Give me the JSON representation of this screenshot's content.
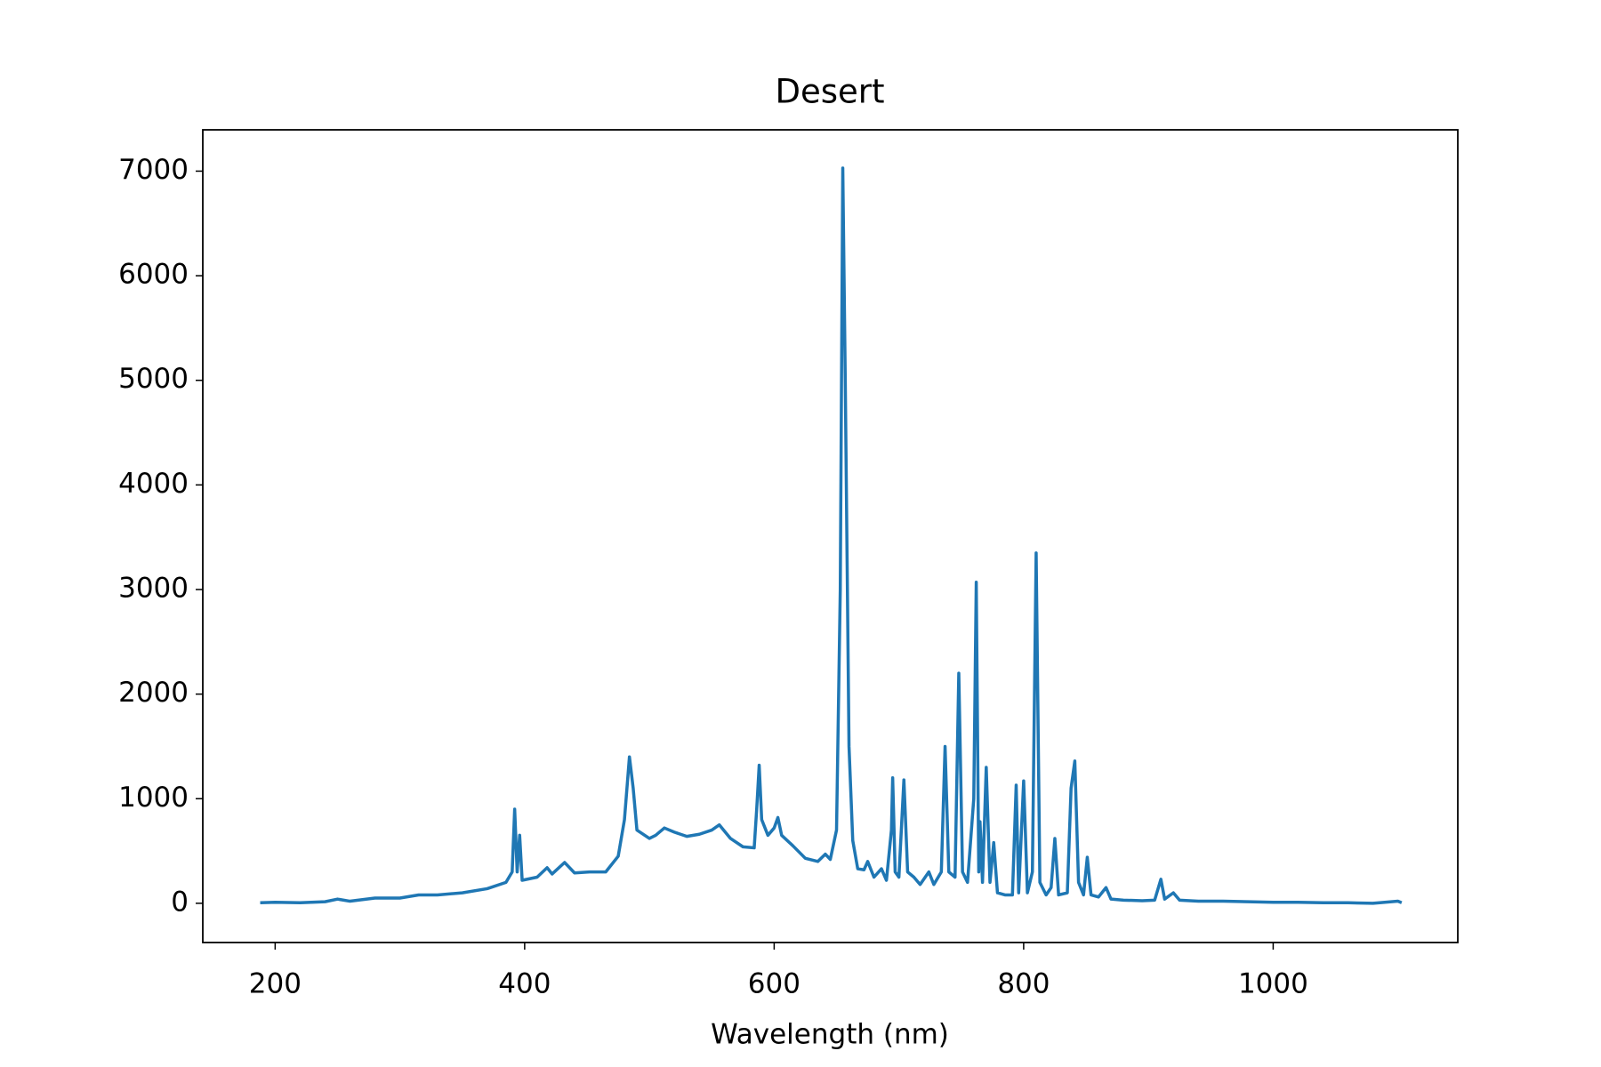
{
  "chart_data": {
    "type": "line",
    "title": "Desert",
    "x_label": "Wavelength (nm)",
    "x": [
      188,
      200,
      220,
      240,
      250,
      260,
      280,
      300,
      315,
      330,
      350,
      370,
      385,
      390,
      392,
      394,
      396,
      398,
      410,
      418,
      422,
      432,
      440,
      452,
      465,
      475,
      480,
      484,
      487,
      490,
      500,
      505,
      512,
      520,
      530,
      540,
      550,
      556,
      565,
      575,
      584,
      586,
      588,
      590,
      595,
      600,
      603,
      606,
      615,
      625,
      635,
      641,
      645,
      650,
      653,
      655,
      657,
      660,
      663,
      667,
      672,
      675,
      680,
      686,
      690,
      694,
      695,
      697,
      700,
      704,
      707,
      712,
      717,
      724,
      728,
      734,
      737,
      740,
      745,
      748,
      751,
      755,
      760,
      762,
      764,
      765,
      767,
      770,
      773,
      776,
      779,
      785,
      791,
      794,
      796,
      800,
      803,
      807,
      810,
      813,
      818,
      822,
      825,
      828,
      835,
      838,
      841,
      844,
      848,
      851,
      854,
      860,
      866,
      870,
      880,
      895,
      905,
      910,
      913,
      920,
      925,
      940,
      960,
      980,
      1000,
      1020,
      1040,
      1060,
      1080,
      1100,
      1103
    ],
    "series": [
      {
        "name": "Desert",
        "color": "#1f77b4",
        "values": [
          5,
          10,
          5,
          15,
          40,
          20,
          50,
          50,
          80,
          80,
          100,
          140,
          200,
          300,
          900,
          300,
          650,
          220,
          250,
          340,
          280,
          390,
          290,
          300,
          300,
          450,
          800,
          1400,
          1100,
          700,
          620,
          650,
          720,
          680,
          640,
          660,
          700,
          750,
          620,
          540,
          530,
          900,
          1320,
          800,
          650,
          720,
          820,
          650,
          550,
          430,
          400,
          470,
          420,
          700,
          3000,
          7030,
          5000,
          1500,
          600,
          330,
          320,
          400,
          250,
          330,
          220,
          700,
          1200,
          300,
          250,
          1180,
          300,
          250,
          180,
          300,
          180,
          300,
          1500,
          300,
          250,
          2200,
          300,
          200,
          1000,
          3070,
          300,
          780,
          200,
          1300,
          200,
          580,
          100,
          80,
          80,
          1130,
          100,
          1170,
          100,
          300,
          3350,
          200,
          80,
          150,
          620,
          80,
          100,
          1100,
          1360,
          200,
          80,
          440,
          80,
          60,
          150,
          40,
          30,
          25,
          30,
          230,
          40,
          100,
          30,
          20,
          20,
          15,
          10,
          10,
          5,
          5,
          0,
          20,
          5
        ]
      }
    ],
    "xlim": [
      142,
      1148
    ],
    "ylim": [
      -375,
      7395
    ],
    "xticks": [
      200,
      400,
      600,
      800,
      1000
    ],
    "yticks": [
      0,
      1000,
      2000,
      3000,
      4000,
      5000,
      6000,
      7000
    ],
    "grid": false
  }
}
